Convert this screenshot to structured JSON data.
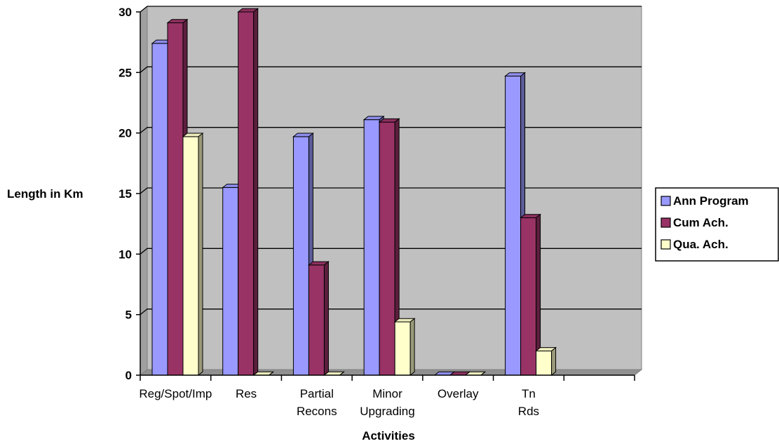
{
  "chart_data": {
    "type": "bar",
    "categories": [
      "Reg/Spot/Imp",
      "Res",
      "Partial Recons",
      "Minor Upgrading",
      "Overlay",
      "Tn Rds",
      ""
    ],
    "series": [
      {
        "name": "Ann Program",
        "values": [
          27.4,
          15.5,
          19.7,
          21.1,
          0,
          24.7,
          null
        ],
        "color": "#9999ff"
      },
      {
        "name": "Cum Ach.",
        "values": [
          29.1,
          30.0,
          9.1,
          20.9,
          0,
          13.0,
          null
        ],
        "color": "#993366"
      },
      {
        "name": "Qua. Ach.",
        "values": [
          19.7,
          0,
          0,
          4.4,
          0,
          2.0,
          null
        ],
        "color": "#ffffcc"
      }
    ],
    "title": "",
    "xlabel": "Activities",
    "ylabel": "Length in Km",
    "ylim": [
      0,
      30
    ],
    "yticks": [
      0,
      5,
      10,
      15,
      20,
      25,
      30
    ],
    "grid": true,
    "legend_position": "right",
    "plot_background": "#c0c0c0",
    "style": "3d-clustered-column"
  }
}
